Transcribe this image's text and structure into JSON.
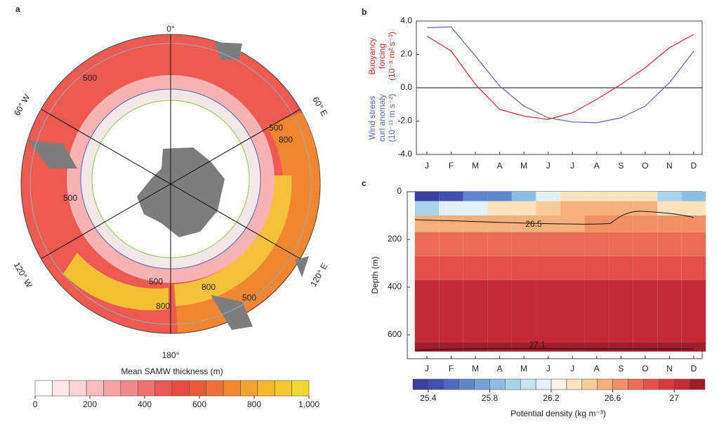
{
  "chart_data": [
    {
      "type": "map",
      "label": "a",
      "title": "Mean SAMW thickness (m)",
      "longitude_labels": [
        "0°",
        "60° E",
        "120° E",
        "180°",
        "120° W",
        "60° W"
      ],
      "contour_labels": [
        "500",
        "500",
        "500",
        "500",
        "500",
        "800",
        "800",
        "800"
      ],
      "colorbar": {
        "lim": [
          0,
          1000
        ],
        "ticks": [
          0,
          200,
          400,
          600,
          800,
          {
            "value": 1000,
            "label": "1,000"
          }
        ],
        "colors": [
          "#ffffff",
          "#fde8ea",
          "#fbd3d6",
          "#f8bcc0",
          "#f5a3a8",
          "#f18a8f",
          "#ed7072",
          "#ea5757",
          "#e94b45",
          "#eb5a38",
          "#ee7034",
          "#f08a30",
          "#f3a22e",
          "#f5b72e",
          "#f4c830",
          "#f0d935"
        ]
      }
    },
    {
      "type": "line",
      "label": "b",
      "categories": [
        "J",
        "F",
        "M",
        "A",
        "M",
        "J",
        "J",
        "A",
        "S",
        "O",
        "N",
        "D"
      ],
      "ylim": [
        -4,
        4
      ],
      "yticks": [
        {
          "value": 4,
          "label": "4.0"
        },
        {
          "value": 2,
          "label": "2.0"
        },
        {
          "value": 0,
          "label": "0.0"
        },
        {
          "value": -2,
          "label": "-2.0"
        },
        {
          "value": -4,
          "label": "-4.0"
        }
      ],
      "zero_line": true,
      "series": [
        {
          "label": [
            "Buoyancy",
            "forcing",
            "(10⁻⁸ m² s⁻³)"
          ],
          "color": "#d8282b",
          "values": [
            3.1,
            2.2,
            0.2,
            -1.3,
            -1.7,
            -1.9,
            -1.5,
            -0.7,
            0.2,
            1.2,
            2.4,
            3.2
          ]
        },
        {
          "label": [
            "Wind stress",
            "curl anomaly",
            "(10⁻¹¹ m s⁻²)"
          ],
          "color": "#5a63b8",
          "values": [
            3.6,
            3.65,
            1.9,
            0.1,
            -1.1,
            -1.8,
            -2.05,
            -2.1,
            -1.8,
            -1.1,
            0.3,
            2.2
          ]
        }
      ]
    },
    {
      "type": "contour",
      "label": "c",
      "ylabel": "Depth (m)",
      "categories": [
        "J",
        "F",
        "M",
        "A",
        "M",
        "J",
        "J",
        "A",
        "S",
        "O",
        "N",
        "D"
      ],
      "ylim": [
        0,
        700
      ],
      "yticks": [
        0,
        200,
        400,
        600
      ],
      "depth_edges": [
        0,
        40,
        100,
        170,
        270,
        370,
        500,
        630,
        670
      ],
      "values": [
        [
          25.4,
          25.5,
          25.6,
          25.7,
          25.9,
          26.1,
          26.3,
          26.4,
          26.4,
          26.3,
          26.0,
          25.9
        ],
        [
          26.0,
          26.1,
          26.2,
          26.3,
          26.4,
          26.45,
          26.5,
          26.5,
          26.55,
          26.5,
          26.4,
          26.3
        ],
        [
          26.55,
          26.55,
          26.55,
          26.55,
          26.55,
          26.55,
          26.55,
          26.6,
          26.6,
          26.6,
          26.6,
          26.6
        ],
        [
          26.75,
          26.75,
          26.75,
          26.75,
          26.75,
          26.75,
          26.75,
          26.75,
          26.75,
          26.75,
          26.75,
          26.75
        ],
        [
          26.9,
          26.9,
          26.9,
          26.9,
          26.9,
          26.9,
          26.9,
          26.9,
          26.9,
          26.9,
          26.9,
          26.9
        ],
        [
          27.0,
          27.0,
          27.0,
          27.0,
          27.0,
          27.0,
          27.0,
          27.0,
          27.0,
          27.0,
          27.0,
          27.0
        ],
        [
          27.05,
          27.05,
          27.05,
          27.05,
          27.05,
          27.05,
          27.05,
          27.05,
          27.05,
          27.05,
          27.05,
          27.05
        ],
        [
          27.15,
          27.15,
          27.15,
          27.15,
          27.15,
          27.15,
          27.15,
          27.15,
          27.15,
          27.15,
          27.15,
          27.15
        ]
      ],
      "contour_labels": [
        "26.5",
        "27.1"
      ],
      "colorbar": {
        "title": "Potential density (kg m⁻³)",
        "lim": [
          25.3,
          27.2
        ],
        "ticks": [
          25.4,
          25.8,
          26.2,
          26.6,
          27
        ],
        "colors": [
          "#3a3fa0",
          "#4150b0",
          "#4f68c0",
          "#5f86cc",
          "#74a0d6",
          "#8ebde3",
          "#aad3ec",
          "#c6e4f2",
          "#e2f1f7",
          "#fdf6e8",
          "#fbe3bd",
          "#f8cc98",
          "#f5b07b",
          "#f29068",
          "#ec6d55",
          "#e4504a",
          "#d83a3f",
          "#c42a35",
          "#9e1f2a"
        ]
      }
    }
  ]
}
